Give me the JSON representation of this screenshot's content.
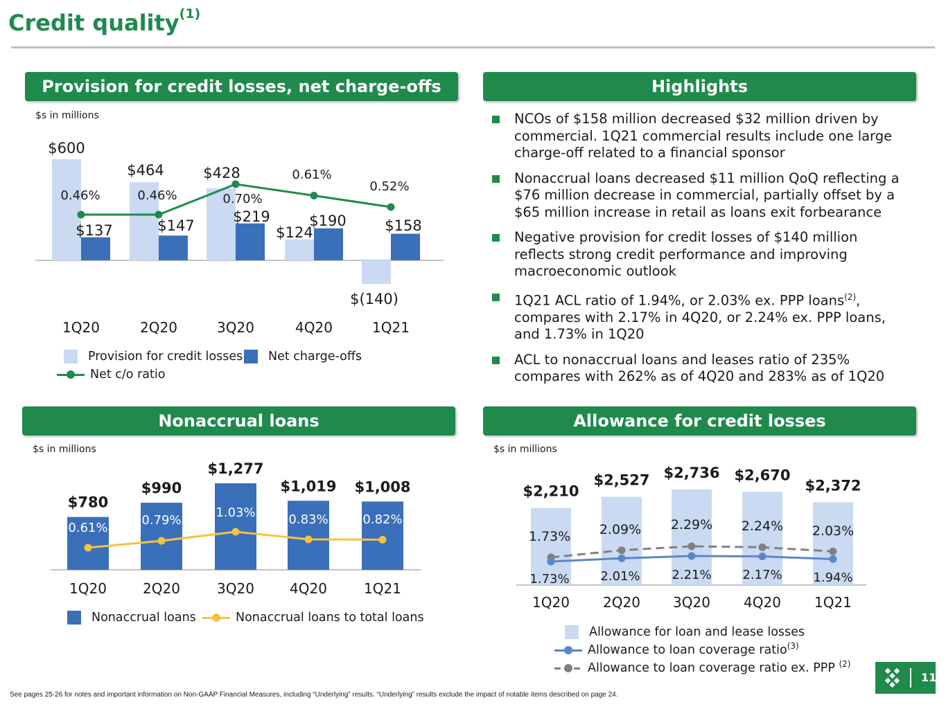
{
  "page": {
    "title": "Credit quality",
    "title_sup": "(1)",
    "page_number": "11",
    "footnote": "See pages 25-26 for notes and important information on Non-GAAP Financial Measures, including “Underlying” results. “Underlying” results exclude the impact of notable items described on page 24."
  },
  "colors": {
    "brand_green": "#1f8a4c",
    "light_bar": "#c9daf2",
    "dark_bar": "#3a6fba",
    "ratio_line_green": "#1f8a4c",
    "nonaccrual_line": "#f5c342",
    "acl_line": "#5b86c9",
    "acl_ex_ppp_line": "#808080"
  },
  "panels": {
    "provision": {
      "header": "Provision for credit losses, net charge-offs",
      "unit": "$s in millions"
    },
    "highlights": {
      "header": "Highlights",
      "items": [
        {
          "text": "NCOs of $158 million decreased $32 million driven by commercial. 1Q21 commercial results include one large charge-off related to a financial sponsor"
        },
        {
          "text": "Nonaccrual loans decreased $11 million QoQ reflecting a $76 million decrease in commercial, partially offset by a $65 million increase in retail as loans exit forbearance"
        },
        {
          "text": "Negative provision for credit losses of $140 million reflects strong credit performance and improving macroeconomic outlook"
        },
        {
          "text_a": "1Q21 ACL ratio of 1.94%, or 2.03% ex. PPP loans",
          "sup": "(2)",
          "text_b": ", compares with 2.17% in 4Q20, or 2.24% ex. PPP loans, and 1.73% in 1Q20"
        },
        {
          "text": "ACL to nonaccrual loans and leases ratio of 235% compares with 262% as of 4Q20 and 283% as of 1Q20"
        }
      ]
    },
    "nonaccrual": {
      "header": "Nonaccrual loans",
      "unit": "$s in millions"
    },
    "allowance": {
      "header": "Allowance for credit losses",
      "unit": "$s in millions"
    }
  },
  "chart_data": [
    {
      "type": "bar",
      "categories": [
        "1Q20",
        "2Q20",
        "3Q20",
        "4Q20",
        "1Q21"
      ],
      "series": [
        {
          "name": "Provision for credit losses",
          "values": [
            600,
            464,
            428,
            124,
            -140
          ],
          "labels": [
            "$600",
            "$464",
            "$428",
            "$124",
            "$(140)"
          ]
        },
        {
          "name": "Net charge-offs",
          "values": [
            137,
            147,
            219,
            190,
            158
          ],
          "labels": [
            "$137",
            "$147",
            "$219",
            "$190",
            "$158"
          ]
        },
        {
          "name": "Net c/o ratio",
          "type": "line",
          "values": [
            0.46,
            0.46,
            0.7,
            0.61,
            0.52
          ],
          "labels": [
            "0.46%",
            "0.46%",
            "0.70%",
            "0.61%",
            "0.52%"
          ]
        }
      ],
      "legend": [
        "Provision for credit losses",
        "Net charge-offs",
        "Net c/o ratio"
      ]
    },
    {
      "type": "bar",
      "categories": [
        "1Q20",
        "2Q20",
        "3Q20",
        "4Q20",
        "1Q21"
      ],
      "series": [
        {
          "name": "Nonaccrual loans",
          "values": [
            780,
            990,
            1277,
            1019,
            1008
          ],
          "labels": [
            "$780",
            "$990",
            "$1,277",
            "$1,019",
            "$1,008"
          ]
        },
        {
          "name": "Nonaccrual loans to total loans",
          "type": "line",
          "values": [
            0.61,
            0.79,
            1.03,
            0.83,
            0.82
          ],
          "labels": [
            "0.61%",
            "0.79%",
            "1.03%",
            "0.83%",
            "0.82%"
          ]
        }
      ],
      "legend": [
        "Nonaccrual loans",
        "Nonaccrual loans to total loans"
      ]
    },
    {
      "type": "bar",
      "categories": [
        "1Q20",
        "2Q20",
        "3Q20",
        "4Q20",
        "1Q21"
      ],
      "series": [
        {
          "name": "Allowance for loan and lease losses",
          "values": [
            2210,
            2527,
            2736,
            2670,
            2372
          ],
          "labels": [
            "$2,210",
            "$2,527",
            "$2,736",
            "$2,670",
            "$2,372"
          ]
        },
        {
          "name": "Allowance to loan coverage ratio",
          "name_sup": "(3)",
          "type": "line",
          "values": [
            1.73,
            2.01,
            2.21,
            2.17,
            1.94
          ],
          "labels": [
            "1.73%",
            "2.01%",
            "2.21%",
            "2.17%",
            "1.94%"
          ]
        },
        {
          "name": "Allowance to loan coverage ratio ex. PPP",
          "name_sup": "(2)",
          "type": "line",
          "style": "dashed",
          "values": [
            1.73,
            2.09,
            2.29,
            2.24,
            2.03
          ],
          "labels": [
            "1.73%",
            "2.09%",
            "2.29%",
            "2.24%",
            "2.03%"
          ]
        }
      ],
      "legend": [
        "Allowance for loan and lease losses",
        "Allowance to loan coverage ratio",
        "Allowance to loan coverage ratio ex. PPP"
      ]
    }
  ]
}
